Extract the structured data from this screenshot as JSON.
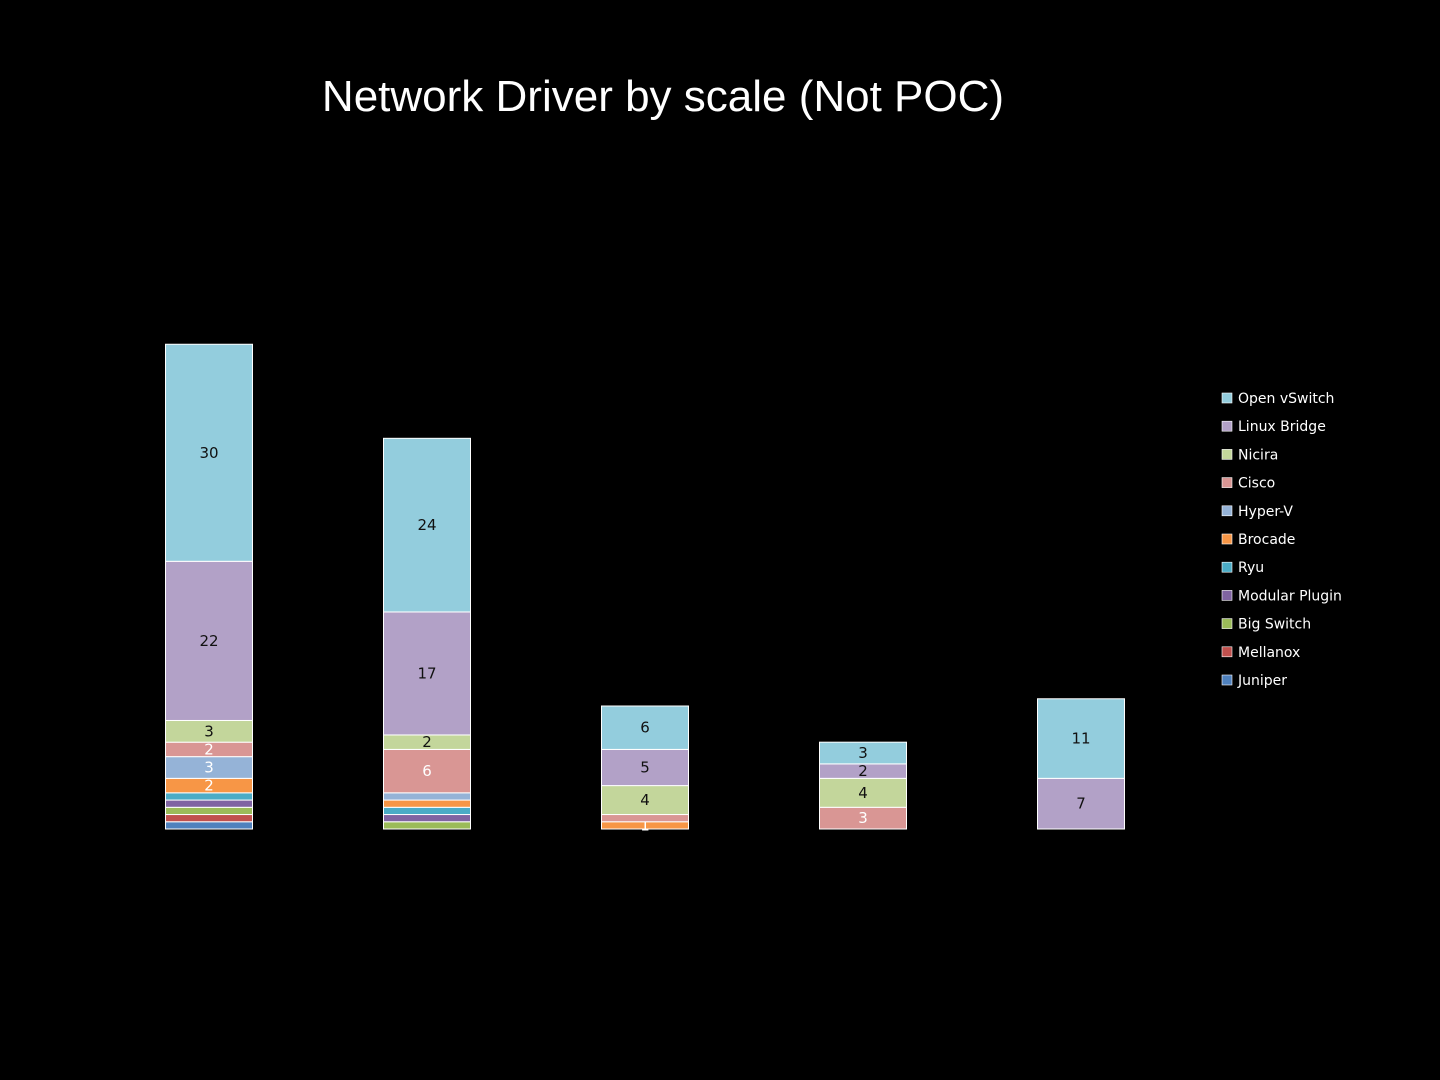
{
  "chart_data": {
    "type": "bar",
    "stacked": true,
    "title": "Network Driver by scale (Not POC)",
    "xlabel": "",
    "ylabel": "",
    "categories": [
      "",
      "",
      "",
      "",
      ""
    ],
    "legend_position": "right",
    "grid": false,
    "series": [
      {
        "name": "Juniper",
        "color": "#4f81bd",
        "values": [
          1,
          0,
          0,
          0,
          0
        ],
        "labels": [
          null,
          null,
          null,
          null,
          null
        ]
      },
      {
        "name": "Mellanox",
        "color": "#c0504d",
        "values": [
          1,
          0,
          0,
          0,
          0
        ],
        "labels": [
          null,
          null,
          null,
          null,
          null
        ]
      },
      {
        "name": "Big Switch",
        "color": "#9bbb59",
        "values": [
          1,
          1,
          0,
          0,
          0
        ],
        "labels": [
          null,
          null,
          null,
          null,
          null
        ]
      },
      {
        "name": "Modular Plugin",
        "color": "#8064a2",
        "values": [
          1,
          1,
          0,
          0,
          0
        ],
        "labels": [
          null,
          null,
          null,
          null,
          null
        ]
      },
      {
        "name": "Ryu",
        "color": "#4bacc6",
        "values": [
          1,
          1,
          0,
          0,
          0
        ],
        "labels": [
          null,
          null,
          null,
          null,
          null
        ]
      },
      {
        "name": "Brocade",
        "color": "#f79646",
        "values": [
          2,
          1,
          1,
          0,
          0
        ],
        "labels": [
          "2",
          null,
          "1",
          null,
          null
        ]
      },
      {
        "name": "Hyper-V",
        "color": "#95b3d7",
        "values": [
          3,
          1,
          0,
          0,
          0
        ],
        "labels": [
          "3",
          null,
          null,
          null,
          null
        ]
      },
      {
        "name": "Cisco",
        "color": "#d99694",
        "values": [
          2,
          6,
          1,
          3,
          0
        ],
        "labels": [
          "2",
          "6",
          null,
          "3",
          null
        ]
      },
      {
        "name": "Nicira",
        "color": "#c3d69b",
        "values": [
          3,
          2,
          4,
          4,
          0
        ],
        "labels": [
          "3",
          "2",
          "4",
          "4",
          null
        ]
      },
      {
        "name": "Linux Bridge",
        "color": "#b2a1c7",
        "values": [
          22,
          17,
          5,
          2,
          7
        ],
        "labels": [
          "22",
          "17",
          "5",
          "2",
          "7"
        ]
      },
      {
        "name": "Open vSwitch",
        "color": "#93cddd",
        "values": [
          30,
          24,
          6,
          3,
          11
        ],
        "labels": [
          "30",
          "24",
          "6",
          "3",
          "11"
        ]
      }
    ],
    "dark_label_series": [
      "Nicira",
      "Linux Bridge",
      "Open vSwitch"
    ]
  }
}
